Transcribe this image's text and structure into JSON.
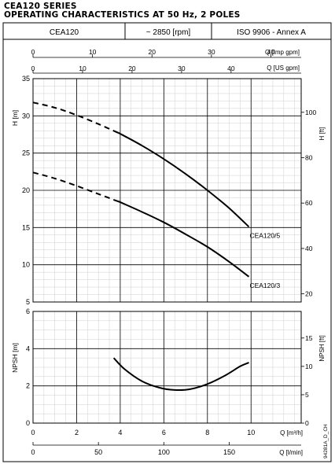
{
  "header": {
    "title_line1": "CEA120 SERIES",
    "title_line2": "OPERATING CHARACTERISTICS AT 50 Hz, 2 POLES",
    "cells": [
      "CEA120",
      "~ 2850 [rpm]",
      "ISO 9906 - Annex A"
    ]
  },
  "footnote": "94281A_D_CH",
  "chart_data": [
    {
      "type": "line",
      "name": "head",
      "x_unit": "m3/h",
      "xlim": [
        0,
        12.3
      ],
      "xticks": [
        0,
        2,
        4,
        6,
        8,
        10
      ],
      "xlabel": "Q [m³/h]",
      "top_axes": [
        {
          "label": "Q [Imp gpm]",
          "ticks": [
            0,
            10,
            20,
            30,
            40
          ]
        },
        {
          "label": "Q [US gpm]",
          "ticks": [
            0,
            10,
            20,
            30,
            40
          ]
        }
      ],
      "bottom_axis2": {
        "label": "Q [l/min]",
        "ticks": [
          0,
          50,
          100,
          150
        ]
      },
      "ylabel": "H [m]",
      "ylim": [
        5,
        35
      ],
      "yticks": [
        5,
        10,
        15,
        20,
        25,
        30,
        35
      ],
      "ylabel_right": "H [ft]",
      "yticks_right": [
        20,
        40,
        60,
        80,
        100
      ],
      "grid": true,
      "series": [
        {
          "name": "CEA120/5",
          "x": [
            0,
            1,
            2,
            3,
            4,
            5,
            6,
            7,
            8,
            9,
            9.9
          ],
          "y": [
            31.8,
            31.1,
            30.1,
            28.9,
            27.6,
            26.0,
            24.2,
            22.2,
            20.0,
            17.6,
            15.1
          ],
          "dashed_until": 3.9
        },
        {
          "name": "CEA120/3",
          "x": [
            0,
            1,
            2,
            3,
            4,
            5,
            6,
            7,
            8,
            9,
            9.9
          ],
          "y": [
            22.4,
            21.6,
            20.6,
            19.5,
            18.4,
            17.1,
            15.7,
            14.1,
            12.4,
            10.4,
            8.4
          ],
          "dashed_until": 3.9
        }
      ]
    },
    {
      "type": "line",
      "name": "npsh",
      "x_unit": "m3/h",
      "xlim": [
        0,
        12.3
      ],
      "xticks": [
        0,
        2,
        4,
        6,
        8,
        10
      ],
      "ylabel": "NPSH [m]",
      "ylim": [
        0,
        6
      ],
      "yticks": [
        0,
        2,
        4,
        6
      ],
      "ylabel_right": "NPSH [ft]",
      "yticks_right": [
        0,
        5,
        10,
        15
      ],
      "grid": true,
      "series": [
        {
          "name": "NPSH",
          "x": [
            3.7,
            4.2,
            5,
            5.8,
            6.5,
            7.2,
            8,
            8.8,
            9.5,
            9.9
          ],
          "y": [
            3.5,
            2.9,
            2.25,
            1.9,
            1.78,
            1.82,
            2.1,
            2.55,
            3.05,
            3.25
          ]
        }
      ]
    }
  ]
}
